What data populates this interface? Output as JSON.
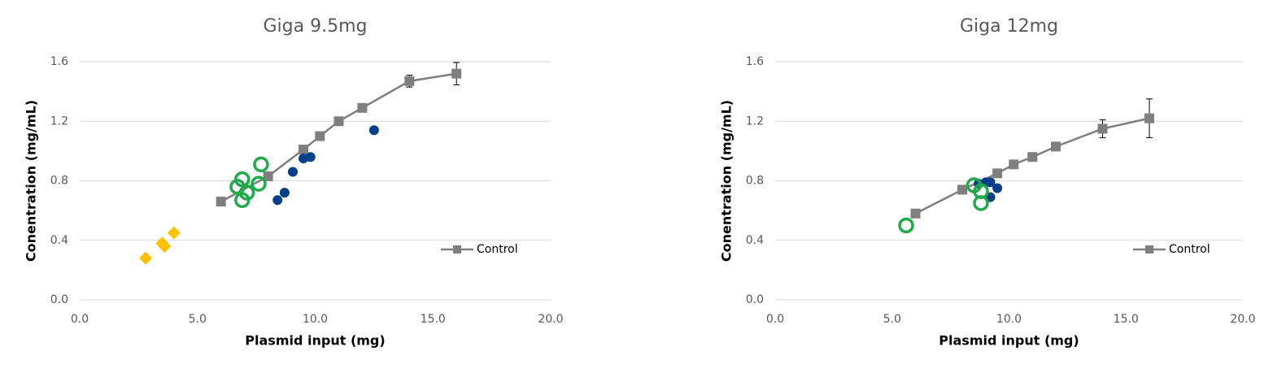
{
  "chart_data": [
    {
      "type": "scatter",
      "title": "Giga 9.5mg",
      "x_label": "Plasmid input (mg)",
      "y_label": "Conentration (mg/mL)",
      "xlim": [
        0,
        20
      ],
      "xticks": [
        {
          "value": 0,
          "label": "0.0"
        },
        {
          "value": 5,
          "label": "5.0"
        },
        {
          "value": 10,
          "label": "10.0"
        },
        {
          "value": 15,
          "label": "15.0"
        },
        {
          "value": 20,
          "label": "20.0"
        }
      ],
      "ylim": [
        0,
        1.6
      ],
      "yticks": [
        {
          "value": 0,
          "label": "0.0"
        },
        0.4,
        0.8,
        1.2,
        1.6
      ],
      "grid": true,
      "legend": "lower right",
      "series": [
        {
          "name": "Control",
          "color": "#7f7f7f",
          "marker": "square",
          "line": true,
          "x": [
            6,
            8,
            9.5,
            10.2,
            11,
            12,
            14,
            16
          ],
          "values": [
            0.66,
            0.83,
            1.01,
            1.1,
            1.2,
            1.29,
            1.47,
            1.52
          ],
          "errors": [
            null,
            null,
            null,
            null,
            null,
            null,
            0.04,
            0.075
          ]
        },
        {
          "color": "#003f8a",
          "marker": "circle",
          "x": [
            8.4,
            8.7,
            9.05,
            9.5,
            9.8,
            12.5
          ],
          "values": [
            0.67,
            0.72,
            0.86,
            0.95,
            0.96,
            1.14
          ]
        },
        {
          "color": "#1faa4b",
          "marker": "ring",
          "x": [
            6.9,
            6.7,
            7.1,
            6.9,
            7.6,
            7.7
          ],
          "values": [
            0.81,
            0.76,
            0.72,
            0.67,
            0.78,
            0.91
          ]
        },
        {
          "color": "#ffc000",
          "marker": "diamond",
          "x": [
            2.8,
            3.5,
            3.6,
            4.0
          ],
          "values": [
            0.28,
            0.38,
            0.36,
            0.45
          ]
        }
      ]
    },
    {
      "type": "scatter",
      "title": "Giga 12mg",
      "x_label": "Plasmid input (mg)",
      "y_label": "Conentration (mg/mL)",
      "xlim": [
        0,
        20
      ],
      "xticks": [
        {
          "value": 0,
          "label": "0.0"
        },
        {
          "value": 5,
          "label": "5.0"
        },
        {
          "value": 10,
          "label": "10.0"
        },
        {
          "value": 15,
          "label": "15.0"
        },
        {
          "value": 20,
          "label": "20.0"
        }
      ],
      "ylim": [
        0,
        1.6
      ],
      "yticks": [
        {
          "value": 0,
          "label": "0.0"
        },
        0.4,
        0.8,
        1.2,
        1.6
      ],
      "grid": true,
      "legend": "lower right",
      "series": [
        {
          "name": "Control",
          "color": "#7f7f7f",
          "marker": "square",
          "line": true,
          "x": [
            6,
            8,
            9.5,
            10.2,
            11,
            12,
            14,
            16
          ],
          "values": [
            0.58,
            0.74,
            0.85,
            0.91,
            0.96,
            1.03,
            1.15,
            1.22
          ],
          "errors": [
            null,
            null,
            null,
            null,
            null,
            null,
            0.06,
            0.13
          ]
        },
        {
          "color": "#003f8a",
          "marker": "circle",
          "x": [
            8.7,
            9.0,
            9.2,
            9.5,
            9.2
          ],
          "values": [
            0.78,
            0.79,
            0.79,
            0.75,
            0.69
          ]
        },
        {
          "color": "#1faa4b",
          "marker": "ring",
          "x": [
            5.6,
            8.5,
            8.8,
            8.8
          ],
          "values": [
            0.5,
            0.77,
            0.73,
            0.65
          ]
        }
      ]
    }
  ]
}
